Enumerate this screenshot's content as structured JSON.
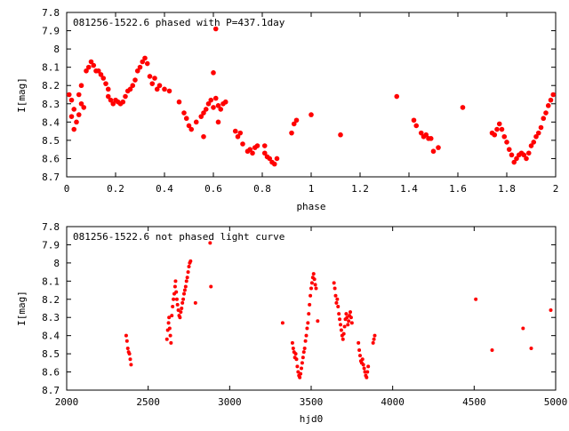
{
  "colors": {
    "points": "#ff0000",
    "axes": "#000000",
    "background": "#ffffff"
  },
  "chart_data": [
    {
      "type": "scatter",
      "title": "081256-1522.6 phased with P=437.1day",
      "xlabel": "phase",
      "ylabel": "I[mag]",
      "xlim": [
        0,
        2
      ],
      "ylim": [
        8.7,
        7.8
      ],
      "y_inverted": true,
      "grid": false,
      "xticks": [
        "0",
        "0.2",
        "0.4",
        "0.6",
        "0.8",
        "1",
        "1.2",
        "1.4",
        "1.6",
        "1.8",
        "2"
      ],
      "yticks": [
        "7.8",
        "7.9",
        "8",
        "8.1",
        "8.2",
        "8.3",
        "8.4",
        "8.5",
        "8.6",
        "8.7"
      ],
      "points": [
        [
          0.01,
          8.25
        ],
        [
          0.02,
          8.28
        ],
        [
          0.03,
          8.33
        ],
        [
          0.02,
          8.37
        ],
        [
          0.04,
          8.4
        ],
        [
          0.03,
          8.44
        ],
        [
          0.05,
          8.36
        ],
        [
          0.06,
          8.3
        ],
        [
          0.05,
          8.25
        ],
        [
          0.07,
          8.32
        ],
        [
          0.06,
          8.2
        ],
        [
          0.08,
          8.12
        ],
        [
          0.09,
          8.1
        ],
        [
          0.1,
          8.07
        ],
        [
          0.11,
          8.09
        ],
        [
          0.12,
          8.12
        ],
        [
          0.13,
          8.12
        ],
        [
          0.14,
          8.14
        ],
        [
          0.15,
          8.16
        ],
        [
          0.16,
          8.19
        ],
        [
          0.17,
          8.22
        ],
        [
          0.17,
          8.26
        ],
        [
          0.18,
          8.28
        ],
        [
          0.19,
          8.3
        ],
        [
          0.2,
          8.28
        ],
        [
          0.21,
          8.29
        ],
        [
          0.22,
          8.3
        ],
        [
          0.23,
          8.29
        ],
        [
          0.24,
          8.26
        ],
        [
          0.25,
          8.23
        ],
        [
          0.26,
          8.22
        ],
        [
          0.27,
          8.2
        ],
        [
          0.28,
          8.17
        ],
        [
          0.29,
          8.12
        ],
        [
          0.3,
          8.1
        ],
        [
          0.31,
          8.07
        ],
        [
          0.32,
          8.05
        ],
        [
          0.33,
          8.08
        ],
        [
          0.34,
          8.15
        ],
        [
          0.35,
          8.19
        ],
        [
          0.36,
          8.16
        ],
        [
          0.37,
          8.22
        ],
        [
          0.38,
          8.2
        ],
        [
          0.4,
          8.22
        ],
        [
          0.42,
          8.23
        ],
        [
          0.46,
          8.29
        ],
        [
          0.48,
          8.35
        ],
        [
          0.49,
          8.38
        ],
        [
          0.5,
          8.42
        ],
        [
          0.51,
          8.44
        ],
        [
          0.53,
          8.4
        ],
        [
          0.55,
          8.37
        ],
        [
          0.56,
          8.35
        ],
        [
          0.57,
          8.33
        ],
        [
          0.58,
          8.3
        ],
        [
          0.59,
          8.28
        ],
        [
          0.6,
          8.32
        ],
        [
          0.61,
          8.27
        ],
        [
          0.62,
          8.31
        ],
        [
          0.63,
          8.33
        ],
        [
          0.64,
          8.3
        ],
        [
          0.65,
          8.29
        ],
        [
          0.56,
          8.48
        ],
        [
          0.6,
          8.13
        ],
        [
          0.61,
          7.89
        ],
        [
          0.62,
          8.4
        ],
        [
          0.69,
          8.45
        ],
        [
          0.7,
          8.48
        ],
        [
          0.71,
          8.46
        ],
        [
          0.72,
          8.52
        ],
        [
          0.74,
          8.56
        ],
        [
          0.75,
          8.55
        ],
        [
          0.76,
          8.57
        ],
        [
          0.77,
          8.54
        ],
        [
          0.78,
          8.53
        ],
        [
          0.81,
          8.57
        ],
        [
          0.82,
          8.59
        ],
        [
          0.83,
          8.6
        ],
        [
          0.84,
          8.62
        ],
        [
          0.85,
          8.63
        ],
        [
          0.86,
          8.6
        ],
        [
          0.81,
          8.53
        ],
        [
          0.92,
          8.46
        ],
        [
          0.93,
          8.41
        ],
        [
          0.94,
          8.39
        ],
        [
          1.0,
          8.36
        ],
        [
          1.12,
          8.47
        ],
        [
          1.35,
          8.26
        ],
        [
          1.42,
          8.39
        ],
        [
          1.43,
          8.42
        ],
        [
          1.45,
          8.46
        ],
        [
          1.46,
          8.48
        ],
        [
          1.47,
          8.47
        ],
        [
          1.48,
          8.49
        ],
        [
          1.49,
          8.49
        ],
        [
          1.5,
          8.56
        ],
        [
          1.52,
          8.54
        ],
        [
          1.62,
          8.32
        ],
        [
          1.74,
          8.46
        ],
        [
          1.75,
          8.47
        ],
        [
          1.76,
          8.44
        ],
        [
          1.77,
          8.41
        ],
        [
          1.78,
          8.44
        ],
        [
          1.79,
          8.48
        ],
        [
          1.8,
          8.51
        ],
        [
          1.81,
          8.55
        ],
        [
          1.82,
          8.58
        ],
        [
          1.83,
          8.62
        ],
        [
          1.84,
          8.6
        ],
        [
          1.85,
          8.58
        ],
        [
          1.86,
          8.57
        ],
        [
          1.87,
          8.58
        ],
        [
          1.88,
          8.6
        ],
        [
          1.89,
          8.57
        ],
        [
          1.9,
          8.53
        ],
        [
          1.91,
          8.51
        ],
        [
          1.92,
          8.48
        ],
        [
          1.93,
          8.46
        ],
        [
          1.94,
          8.43
        ],
        [
          1.95,
          8.38
        ],
        [
          1.96,
          8.35
        ],
        [
          1.97,
          8.31
        ],
        [
          1.98,
          8.28
        ],
        [
          1.99,
          8.25
        ]
      ]
    },
    {
      "type": "scatter",
      "title": "081256-1522.6 not phased light curve",
      "xlabel": "hjd0",
      "ylabel": "I[mag]",
      "xlim": [
        2000,
        5000
      ],
      "ylim": [
        8.7,
        7.8
      ],
      "y_inverted": true,
      "grid": false,
      "xticks": [
        "2000",
        "2500",
        "3000",
        "3500",
        "4000",
        "4500",
        "5000"
      ],
      "yticks": [
        "7.8",
        "7.9",
        "8",
        "8.1",
        "8.2",
        "8.3",
        "8.4",
        "8.5",
        "8.6",
        "8.7"
      ],
      "points": [
        [
          2365,
          8.4
        ],
        [
          2370,
          8.43
        ],
        [
          2375,
          8.47
        ],
        [
          2380,
          8.49
        ],
        [
          2385,
          8.5
        ],
        [
          2390,
          8.53
        ],
        [
          2395,
          8.56
        ],
        [
          2615,
          8.42
        ],
        [
          2620,
          8.37
        ],
        [
          2625,
          8.33
        ],
        [
          2628,
          8.3
        ],
        [
          2632,
          8.36
        ],
        [
          2636,
          8.4
        ],
        [
          2640,
          8.44
        ],
        [
          2645,
          8.29
        ],
        [
          2650,
          8.24
        ],
        [
          2655,
          8.2
        ],
        [
          2660,
          8.17
        ],
        [
          2665,
          8.13
        ],
        [
          2668,
          8.1
        ],
        [
          2672,
          8.16
        ],
        [
          2676,
          8.2
        ],
        [
          2680,
          8.23
        ],
        [
          2685,
          8.26
        ],
        [
          2690,
          8.29
        ],
        [
          2695,
          8.3
        ],
        [
          2700,
          8.27
        ],
        [
          2705,
          8.25
        ],
        [
          2710,
          8.22
        ],
        [
          2715,
          8.2
        ],
        [
          2720,
          8.17
        ],
        [
          2725,
          8.15
        ],
        [
          2730,
          8.13
        ],
        [
          2735,
          8.1
        ],
        [
          2740,
          8.08
        ],
        [
          2745,
          8.05
        ],
        [
          2750,
          8.02
        ],
        [
          2755,
          8.0
        ],
        [
          2760,
          7.99
        ],
        [
          2790,
          8.22
        ],
        [
          2880,
          7.89
        ],
        [
          2885,
          8.13
        ],
        [
          3325,
          8.33
        ],
        [
          3385,
          8.44
        ],
        [
          3390,
          8.47
        ],
        [
          3395,
          8.49
        ],
        [
          3400,
          8.52
        ],
        [
          3405,
          8.5
        ],
        [
          3410,
          8.53
        ],
        [
          3415,
          8.57
        ],
        [
          3420,
          8.6
        ],
        [
          3425,
          8.62
        ],
        [
          3430,
          8.63
        ],
        [
          3435,
          8.61
        ],
        [
          3440,
          8.58
        ],
        [
          3445,
          8.55
        ],
        [
          3450,
          8.52
        ],
        [
          3455,
          8.49
        ],
        [
          3460,
          8.47
        ],
        [
          3465,
          8.43
        ],
        [
          3470,
          8.4
        ],
        [
          3475,
          8.36
        ],
        [
          3480,
          8.33
        ],
        [
          3485,
          8.28
        ],
        [
          3490,
          8.23
        ],
        [
          3495,
          8.18
        ],
        [
          3500,
          8.14
        ],
        [
          3505,
          8.11
        ],
        [
          3510,
          8.08
        ],
        [
          3515,
          8.06
        ],
        [
          3520,
          8.09
        ],
        [
          3525,
          8.12
        ],
        [
          3530,
          8.14
        ],
        [
          3540,
          8.32
        ],
        [
          3640,
          8.11
        ],
        [
          3645,
          8.14
        ],
        [
          3650,
          8.18
        ],
        [
          3655,
          8.22
        ],
        [
          3660,
          8.2
        ],
        [
          3665,
          8.24
        ],
        [
          3670,
          8.28
        ],
        [
          3675,
          8.31
        ],
        [
          3680,
          8.34
        ],
        [
          3685,
          8.37
        ],
        [
          3690,
          8.4
        ],
        [
          3695,
          8.42
        ],
        [
          3700,
          8.39
        ],
        [
          3705,
          8.35
        ],
        [
          3710,
          8.31
        ],
        [
          3715,
          8.28
        ],
        [
          3720,
          8.3
        ],
        [
          3725,
          8.34
        ],
        [
          3730,
          8.32
        ],
        [
          3735,
          8.29
        ],
        [
          3740,
          8.27
        ],
        [
          3745,
          8.3
        ],
        [
          3750,
          8.33
        ],
        [
          3790,
          8.44
        ],
        [
          3795,
          8.48
        ],
        [
          3800,
          8.51
        ],
        [
          3805,
          8.54
        ],
        [
          3810,
          8.55
        ],
        [
          3815,
          8.53
        ],
        [
          3820,
          8.56
        ],
        [
          3825,
          8.58
        ],
        [
          3830,
          8.6
        ],
        [
          3835,
          8.62
        ],
        [
          3840,
          8.63
        ],
        [
          3845,
          8.6
        ],
        [
          3850,
          8.57
        ],
        [
          3880,
          8.44
        ],
        [
          3885,
          8.42
        ],
        [
          3890,
          8.4
        ],
        [
          4510,
          8.2
        ],
        [
          4610,
          8.48
        ],
        [
          4800,
          8.36
        ],
        [
          4850,
          8.47
        ],
        [
          4970,
          8.26
        ]
      ]
    }
  ]
}
